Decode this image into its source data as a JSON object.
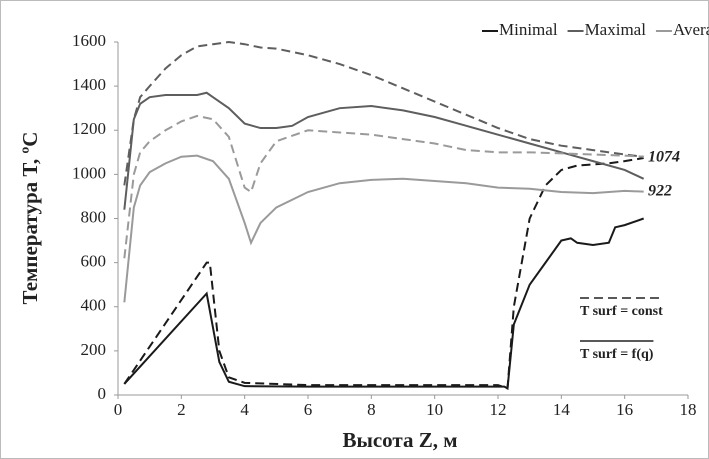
{
  "chart_data": {
    "type": "line",
    "x_label": "Высота Z, м",
    "y_label": "Температура T, ºC",
    "xlim": [
      0,
      18
    ],
    "xticks": [
      0,
      2,
      4,
      6,
      8,
      10,
      12,
      14,
      16,
      18
    ],
    "ylim": [
      0,
      1600
    ],
    "yticks": [
      0,
      200,
      400,
      600,
      800,
      1000,
      1200,
      1400,
      1600
    ],
    "grid": false,
    "legend_position": "top-right",
    "series": [
      {
        "name": "Minimal",
        "color": "#1a1a1a",
        "lines": [
          {
            "style": "solid",
            "x": [
              0.2,
              2.8,
              3.2,
              3.5,
              4,
              6,
              8,
              10,
              12.2,
              12.3,
              12.5,
              13,
              13.5,
              14,
              14.3,
              14.5,
              15,
              15.5,
              15.7,
              16,
              16.6
            ],
            "values": [
              50,
              460,
              150,
              60,
              40,
              38,
              38,
              38,
              38,
              30,
              320,
              500,
              600,
              700,
              710,
              690,
              680,
              690,
              760,
              770,
              800
            ]
          },
          {
            "style": "dashed",
            "x": [
              0.2,
              2.8,
              2.9,
              3.2,
              3.5,
              4,
              6,
              8,
              10,
              12,
              12.3,
              12.5,
              13,
              13.5,
              14,
              14.5,
              15,
              15.5,
              16,
              16.6
            ],
            "values": [
              50,
              600,
              600,
              200,
              80,
              55,
              45,
              45,
              45,
              45,
              30,
              400,
              800,
              950,
              1020,
              1040,
              1045,
              1050,
              1060,
              1074
            ]
          }
        ]
      },
      {
        "name": "Maximal",
        "color": "#5e5e5e",
        "lines": [
          {
            "style": "solid",
            "x": [
              0.2,
              0.5,
              0.7,
              1,
              1.5,
              2,
              2.5,
              2.8,
              3,
              3.5,
              4,
              4.5,
              5,
              5.5,
              6,
              7,
              8,
              9,
              10,
              11,
              12,
              13,
              14,
              15,
              16,
              16.6
            ],
            "values": [
              840,
              1250,
              1320,
              1350,
              1360,
              1360,
              1360,
              1370,
              1350,
              1300,
              1230,
              1210,
              1210,
              1220,
              1260,
              1300,
              1310,
              1290,
              1260,
              1220,
              1180,
              1140,
              1100,
              1060,
              1020,
              980
            ]
          },
          {
            "style": "dashed",
            "x": [
              0.2,
              0.5,
              0.7,
              1,
              1.5,
              2,
              2.5,
              3,
              3.5,
              4,
              4.5,
              5,
              6,
              7,
              8,
              9,
              10,
              11,
              12,
              13,
              14,
              15,
              16,
              16.6
            ],
            "values": [
              950,
              1250,
              1350,
              1400,
              1480,
              1540,
              1580,
              1590,
              1600,
              1590,
              1575,
              1570,
              1540,
              1500,
              1450,
              1390,
              1330,
              1270,
              1210,
              1160,
              1130,
              1110,
              1090,
              1080
            ]
          }
        ]
      },
      {
        "name": "Average",
        "color": "#9a9a9a",
        "lines": [
          {
            "style": "solid",
            "x": [
              0.2,
              0.5,
              0.7,
              1,
              1.5,
              2,
              2.5,
              3,
              3.5,
              4,
              4.2,
              4.5,
              5,
              6,
              7,
              8,
              9,
              10,
              11,
              12,
              13,
              14,
              15,
              16,
              16.6
            ],
            "values": [
              420,
              850,
              950,
              1010,
              1050,
              1080,
              1085,
              1060,
              980,
              780,
              690,
              780,
              850,
              920,
              960,
              975,
              980,
              970,
              960,
              940,
              935,
              920,
              915,
              925,
              922
            ]
          },
          {
            "style": "dashed",
            "x": [
              0.2,
              0.5,
              0.7,
              1,
              1.5,
              2,
              2.5,
              3,
              3.5,
              4,
              4.2,
              4.5,
              5,
              6,
              7,
              8,
              9,
              10,
              11,
              12,
              13,
              14,
              15,
              16,
              16.6
            ],
            "values": [
              620,
              1000,
              1100,
              1150,
              1200,
              1240,
              1265,
              1250,
              1170,
              940,
              920,
              1050,
              1150,
              1200,
              1190,
              1180,
              1160,
              1140,
              1110,
              1100,
              1100,
              1095,
              1090,
              1085,
              1080
            ]
          }
        ]
      }
    ],
    "end_labels": [
      1074,
      922
    ],
    "style_legend": [
      {
        "label": "T surf = const",
        "style": "dashed"
      },
      {
        "label": "T surf = f(q)",
        "style": "solid"
      }
    ]
  }
}
